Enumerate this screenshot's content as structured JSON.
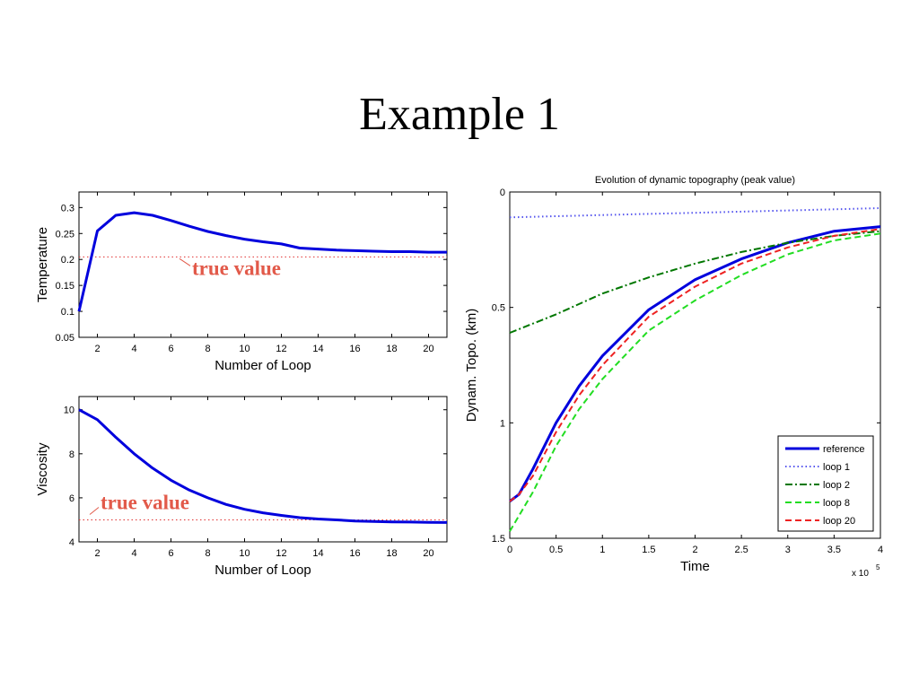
{
  "slide": {
    "title": "Example 1"
  },
  "chart_data": [
    {
      "type": "line",
      "xlabel": "Number of Loop",
      "ylabel": "Temperature",
      "xlim": [
        1,
        21
      ],
      "ylim": [
        0.05,
        0.33
      ],
      "xticks": [
        2,
        4,
        6,
        8,
        10,
        12,
        14,
        16,
        18,
        20
      ],
      "yticks": [
        0.05,
        0.1,
        0.15,
        0.2,
        0.25,
        0.3
      ],
      "grid": false,
      "series": [
        {
          "x": [
            1,
            2,
            3,
            4,
            5,
            6,
            7,
            8,
            9,
            10,
            11,
            12,
            13,
            14,
            15,
            16,
            17,
            18,
            19,
            20,
            21
          ],
          "values": [
            0.1,
            0.255,
            0.285,
            0.29,
            0.285,
            0.275,
            0.264,
            0.254,
            0.246,
            0.239,
            0.234,
            0.23,
            0.222,
            0.22,
            0.218,
            0.217,
            0.216,
            0.215,
            0.215,
            0.214,
            0.214
          ],
          "color": "#0000dd",
          "style": "solid"
        }
      ],
      "reference": {
        "value": 0.205,
        "color": "#e03030",
        "style": "dotted"
      },
      "annotation": {
        "text": "true value",
        "color": "#e25a4a"
      }
    },
    {
      "type": "line",
      "xlabel": "Number of Loop",
      "ylabel": "Viscosity",
      "xlim": [
        1,
        21
      ],
      "ylim": [
        4,
        10.6
      ],
      "xticks": [
        2,
        4,
        6,
        8,
        10,
        12,
        14,
        16,
        18,
        20
      ],
      "yticks": [
        4,
        6,
        8,
        10
      ],
      "grid": false,
      "series": [
        {
          "x": [
            1,
            2,
            3,
            4,
            5,
            6,
            7,
            8,
            9,
            10,
            11,
            12,
            13,
            14,
            15,
            16,
            17,
            18,
            19,
            20,
            21
          ],
          "values": [
            10,
            9.55,
            8.75,
            8.0,
            7.35,
            6.8,
            6.35,
            6.0,
            5.7,
            5.48,
            5.32,
            5.2,
            5.1,
            5.04,
            5.0,
            4.95,
            4.93,
            4.91,
            4.9,
            4.89,
            4.88
          ],
          "color": "#0000dd",
          "style": "solid"
        }
      ],
      "reference": {
        "value": 5.0,
        "color": "#e03030",
        "style": "dotted"
      },
      "annotation": {
        "text": "true value",
        "color": "#e25a4a"
      }
    },
    {
      "type": "line",
      "title": "Evolution of dynamic topography (peak value)",
      "xlabel": "Time",
      "ylabel": "Dynam. Topo. (km)",
      "x_exponent_label": "x 10",
      "x_exponent_power": "5",
      "xlim": [
        0,
        4
      ],
      "ylim": [
        0,
        1.5
      ],
      "y_reversed": true,
      "xticks": [
        0,
        0.5,
        1,
        1.5,
        2,
        2.5,
        3,
        3.5,
        4
      ],
      "yticks": [
        0,
        0.5,
        1,
        1.5
      ],
      "grid": false,
      "legend_position": "bottom-right",
      "series": [
        {
          "name": "reference",
          "color": "#0000dd",
          "style": "solid",
          "x": [
            0,
            0.1,
            0.25,
            0.5,
            0.75,
            1.0,
            1.5,
            2.0,
            2.5,
            3.0,
            3.5,
            4.0
          ],
          "values": [
            1.34,
            1.31,
            1.2,
            1.0,
            0.84,
            0.71,
            0.51,
            0.38,
            0.29,
            0.22,
            0.17,
            0.15
          ]
        },
        {
          "name": "loop 1",
          "color": "#5555ee",
          "style": "dotted",
          "x": [
            0,
            0.5,
            1,
            1.5,
            2,
            2.5,
            3,
            3.5,
            4
          ],
          "values": [
            0.11,
            0.105,
            0.1,
            0.095,
            0.09,
            0.085,
            0.08,
            0.075,
            0.07
          ]
        },
        {
          "name": "loop 2",
          "color": "#007700",
          "style": "dashdot",
          "x": [
            0,
            0.5,
            1,
            1.5,
            2,
            2.5,
            3,
            3.5,
            4
          ],
          "values": [
            0.61,
            0.53,
            0.44,
            0.37,
            0.31,
            0.26,
            0.22,
            0.19,
            0.17
          ]
        },
        {
          "name": "loop 8",
          "color": "#22dd22",
          "style": "dashed",
          "x": [
            0,
            0.25,
            0.5,
            0.75,
            1.0,
            1.5,
            2.0,
            2.5,
            3.0,
            3.5,
            4.0
          ],
          "values": [
            1.47,
            1.3,
            1.1,
            0.94,
            0.81,
            0.6,
            0.47,
            0.36,
            0.27,
            0.21,
            0.18
          ]
        },
        {
          "name": "loop 20",
          "color": "#ee2222",
          "style": "dashed",
          "x": [
            0,
            0.1,
            0.25,
            0.5,
            0.75,
            1.0,
            1.5,
            2.0,
            2.5,
            3.0,
            3.5,
            4.0
          ],
          "values": [
            1.34,
            1.31,
            1.23,
            1.04,
            0.88,
            0.75,
            0.54,
            0.41,
            0.31,
            0.24,
            0.19,
            0.16
          ]
        }
      ]
    }
  ]
}
